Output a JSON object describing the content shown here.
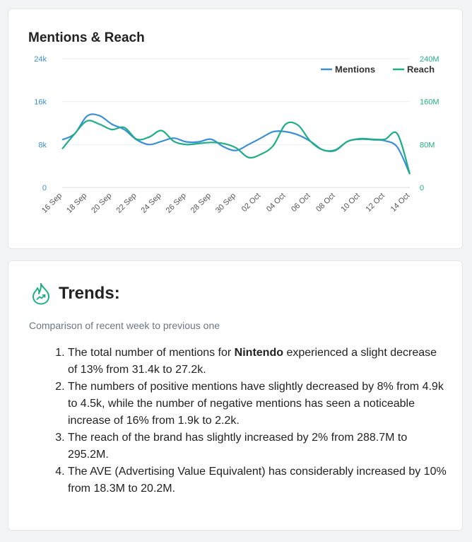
{
  "chart_card": {
    "title": "Mentions & Reach"
  },
  "chart_data": {
    "type": "line",
    "title": "Mentions & Reach",
    "categories": [
      "16 Sep",
      "17 Sep",
      "18 Sep",
      "19 Sep",
      "20 Sep",
      "21 Sep",
      "22 Sep",
      "23 Sep",
      "24 Sep",
      "25 Sep",
      "26 Sep",
      "27 Sep",
      "28 Sep",
      "29 Sep",
      "30 Sep",
      "01 Oct",
      "02 Oct",
      "03 Oct",
      "04 Oct",
      "05 Oct",
      "06 Oct",
      "07 Oct",
      "08 Oct",
      "09 Oct",
      "10 Oct",
      "11 Oct",
      "12 Oct",
      "13 Oct",
      "14 Oct"
    ],
    "x_tick_labels": [
      "16 Sep",
      "18 Sep",
      "20 Sep",
      "22 Sep",
      "24 Sep",
      "26 Sep",
      "28 Sep",
      "30 Sep",
      "02 Oct",
      "04 Oct",
      "06 Oct",
      "08 Oct",
      "10 Oct",
      "12 Oct",
      "14 Oct"
    ],
    "y_left": {
      "ticks": [
        "0",
        "8k",
        "16k",
        "24k"
      ],
      "range": [
        0,
        24000
      ]
    },
    "y_right": {
      "ticks": [
        "0",
        "80M",
        "160M",
        "240M"
      ],
      "range": [
        0,
        240000000
      ]
    },
    "series": [
      {
        "name": "Mentions",
        "axis": "left",
        "color": "#3b8fd9",
        "values": [
          8900,
          10000,
          13300,
          13400,
          11800,
          10800,
          8900,
          8000,
          8600,
          9200,
          8500,
          8500,
          9000,
          7600,
          6900,
          8000,
          9200,
          10400,
          10400,
          9800,
          8600,
          7000,
          6900,
          8600,
          9000,
          8900,
          8700,
          7500,
          2500
        ]
      },
      {
        "name": "Reach",
        "axis": "right",
        "color": "#1fae86",
        "values": [
          72000000,
          100000000,
          124000000,
          118000000,
          108000000,
          112000000,
          90000000,
          94000000,
          106000000,
          86000000,
          80000000,
          82000000,
          84000000,
          82000000,
          74000000,
          56000000,
          62000000,
          78000000,
          118000000,
          116000000,
          86000000,
          70000000,
          70000000,
          86000000,
          91000000,
          90000000,
          90000000,
          100000000,
          25000000
        ]
      }
    ],
    "legend_position": "top-right",
    "grid": true
  },
  "trends": {
    "title": "Trends:",
    "icon": "trend-flame-icon",
    "subtitle": "Comparison of recent week to previous one",
    "items": [
      {
        "before": "The total number of mentions for ",
        "bold": "Nintendo",
        "after": " experienced a slight decrease of 13% from 31.4k to 27.2k."
      },
      {
        "text": "The numbers of positive mentions have slightly decreased by 8% from 4.9k to 4.5k, while the number of negative mentions has seen a noticeable increase of 16% from 1.9k to 2.2k."
      },
      {
        "text": "The reach of the brand has slightly increased by 2% from 288.7M to 295.2M."
      },
      {
        "text": "The AVE (Advertising Value Equivalent) has considerably increased by 10% from 18.3M to 20.2M."
      }
    ]
  }
}
